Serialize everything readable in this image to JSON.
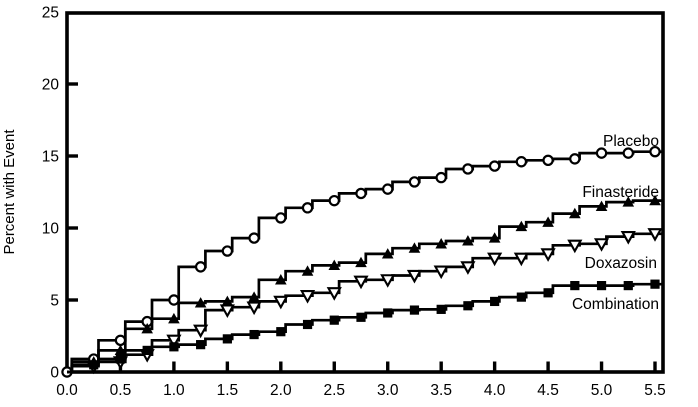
{
  "chart_data": {
    "type": "line",
    "subtype": "kaplan-meier-step",
    "title": "",
    "xlabel": "",
    "ylabel": "Percent with Event",
    "xlim": [
      0,
      5.5
    ],
    "ylim": [
      0,
      25
    ],
    "grid": false,
    "legend_position": "inline-right-labels",
    "ytick_labels": [
      "0",
      "5",
      "10",
      "15",
      "20",
      "25"
    ],
    "ytick_values": [
      0,
      5,
      10,
      15,
      20,
      25
    ],
    "xtick_labels": [
      "0.0",
      "0.5",
      "1.0",
      "1.5",
      "2.0",
      "2.5",
      "3.0",
      "3.5",
      "4.0",
      "4.5",
      "5.0",
      "5.5"
    ],
    "xtick_values": [
      0,
      0.5,
      1,
      1.5,
      2,
      2.5,
      3,
      3.5,
      4,
      4.5,
      5,
      5.5
    ],
    "x": [
      0,
      0.25,
      0.5,
      0.75,
      1.0,
      1.25,
      1.5,
      1.75,
      2.0,
      2.25,
      2.5,
      2.75,
      3.0,
      3.25,
      3.5,
      3.75,
      4.0,
      4.25,
      4.5,
      4.75,
      5.0,
      5.25,
      5.5
    ],
    "series": [
      {
        "name": "Placebo",
        "marker": "circle-open",
        "line_color": "#000000",
        "values": [
          0,
          0.9,
          2.2,
          3.5,
          5.0,
          7.3,
          8.4,
          9.3,
          10.7,
          11.4,
          11.9,
          12.4,
          12.7,
          13.2,
          13.5,
          14.1,
          14.3,
          14.6,
          14.7,
          14.8,
          15.2,
          15.2,
          15.3
        ]
      },
      {
        "name": "Finasteride",
        "marker": "triangle-up-filled",
        "line_color": "#000000",
        "values": [
          0,
          0.7,
          1.5,
          3.0,
          3.7,
          4.8,
          4.9,
          5.2,
          6.4,
          7.0,
          7.4,
          7.6,
          8.2,
          8.6,
          8.9,
          9.1,
          9.3,
          10.1,
          10.4,
          11.0,
          11.5,
          11.8,
          11.9
        ]
      },
      {
        "name": "Doxazosin",
        "marker": "triangle-down-open",
        "line_color": "#000000",
        "values": [
          0,
          0.4,
          0.7,
          1.2,
          2.2,
          2.9,
          4.3,
          4.5,
          4.9,
          5.3,
          5.5,
          6.3,
          6.4,
          6.7,
          7.0,
          7.3,
          7.9,
          7.9,
          8.2,
          8.8,
          8.9,
          9.4,
          9.6
        ]
      },
      {
        "name": "Combination",
        "marker": "square-filled",
        "line_color": "#000000",
        "values": [
          0,
          0.5,
          0.9,
          1.5,
          1.75,
          1.9,
          2.3,
          2.6,
          2.8,
          3.3,
          3.6,
          3.8,
          4.1,
          4.3,
          4.35,
          4.6,
          4.9,
          5.2,
          5.5,
          6.0,
          6.0,
          6.0,
          6.1
        ]
      }
    ],
    "colors": {
      "foreground": "#000000",
      "background": "#ffffff"
    }
  }
}
